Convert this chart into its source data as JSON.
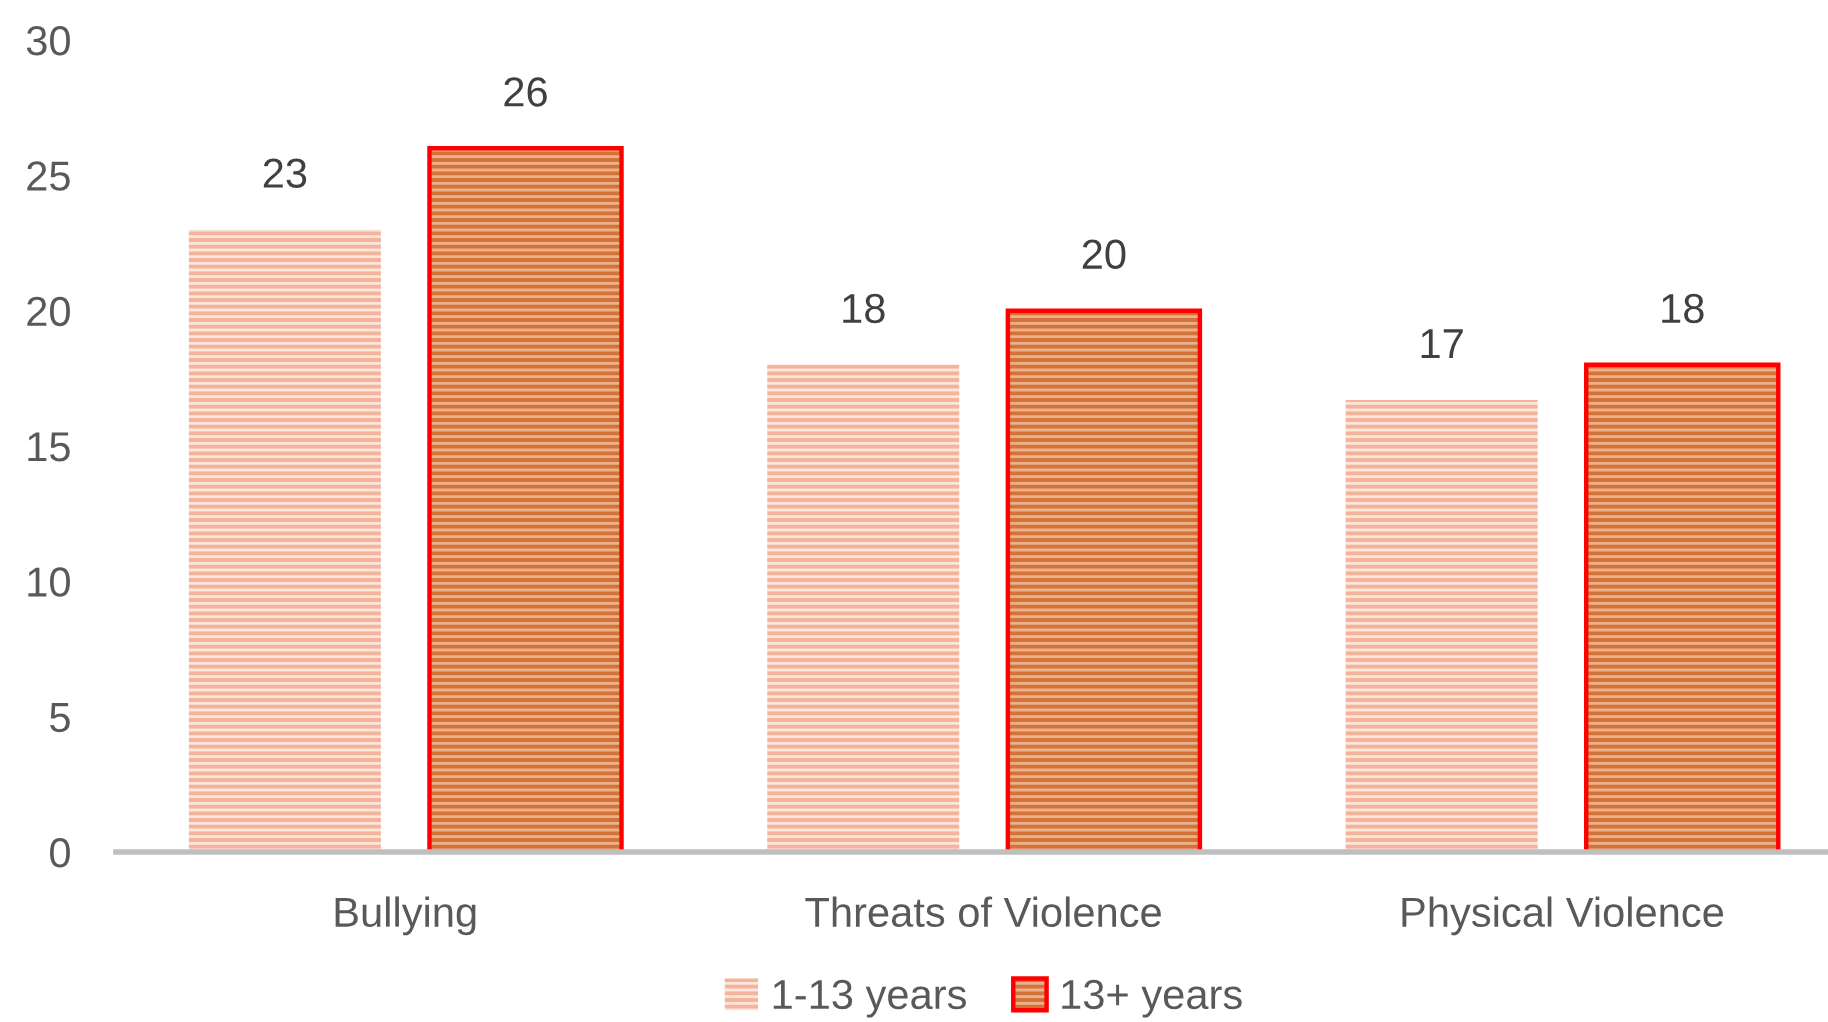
{
  "chart_data": {
    "type": "bar",
    "categories": [
      "Bullying",
      "Threats of Violence",
      "Physical Violence"
    ],
    "series": [
      {
        "name": "1-13 years",
        "color": "#f4b39b",
        "values": [
          23,
          18,
          16.7
        ],
        "value_labels": [
          "23",
          "18",
          "17"
        ]
      },
      {
        "name": "13+ years",
        "color": "#d2733a",
        "values": [
          26,
          20,
          18
        ],
        "value_labels": [
          "26",
          "20",
          "18"
        ]
      }
    ],
    "ylim": [
      0,
      30
    ],
    "yticks": [
      0,
      5,
      10,
      15,
      20,
      25,
      30
    ],
    "grid": false,
    "legend": "bottom"
  }
}
